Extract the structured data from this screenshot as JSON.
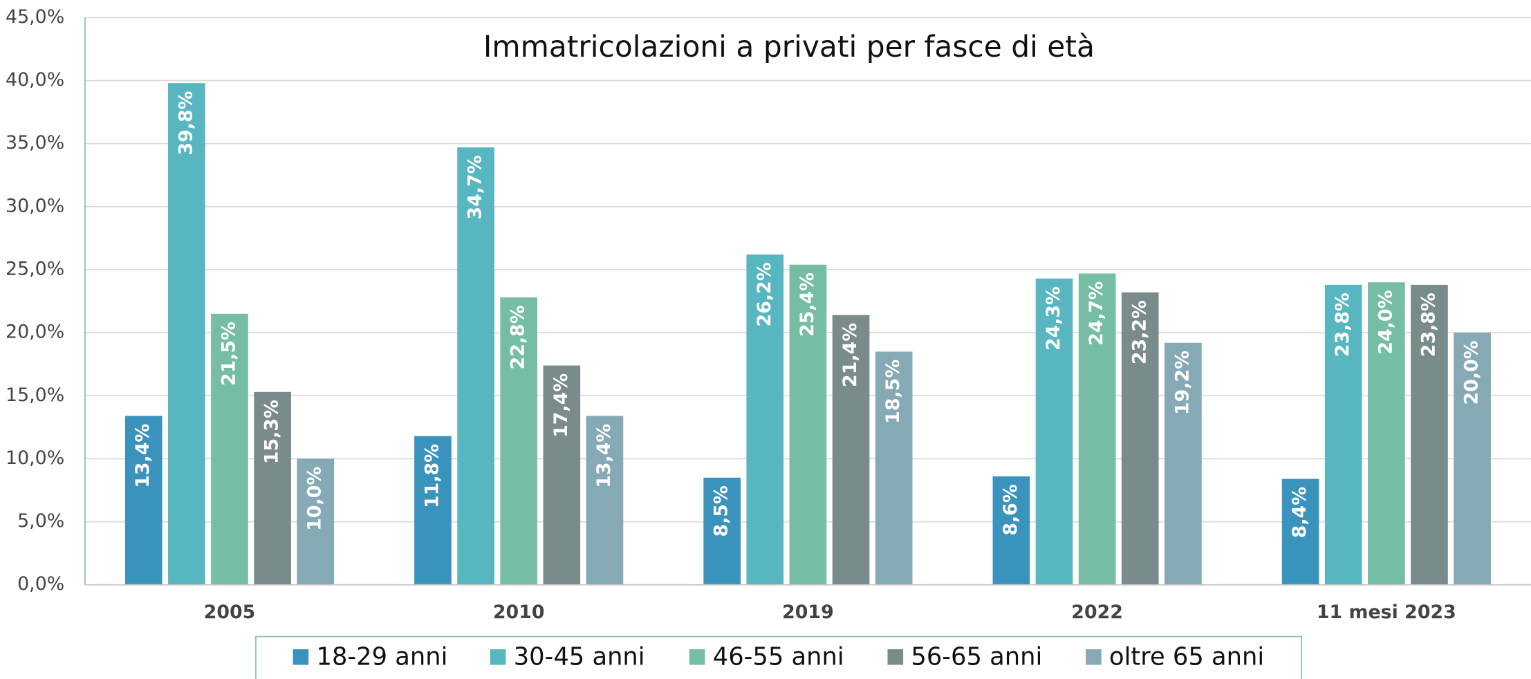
{
  "chart_data": {
    "type": "bar",
    "title": "Immatricolazioni a privati per fasce di età",
    "categories": [
      "2005",
      "2010",
      "2019",
      "2022",
      "11 mesi 2023"
    ],
    "series": [
      {
        "name": "18-29 anni",
        "color": "#3a93bd",
        "values": [
          13.4,
          11.8,
          8.5,
          8.6,
          8.4
        ],
        "value_labels": [
          "13,4%",
          "11,8%",
          "8,5%",
          "8,6%",
          "8,4%"
        ]
      },
      {
        "name": "30-45 anni",
        "color": "#58b6c0",
        "values": [
          39.8,
          34.7,
          26.2,
          24.3,
          23.8
        ],
        "value_labels": [
          "39,8%",
          "34,7%",
          "26,2%",
          "24,3%",
          "23,8%"
        ]
      },
      {
        "name": "46-55 anni",
        "color": "#75bda5",
        "values": [
          21.5,
          22.8,
          25.4,
          24.7,
          24.0
        ],
        "value_labels": [
          "21,5%",
          "22,8%",
          "25,4%",
          "24,7%",
          "24,0%"
        ]
      },
      {
        "name": "56-65 anni",
        "color": "#7a8b8c",
        "values": [
          15.3,
          17.4,
          21.4,
          23.2,
          23.8
        ],
        "value_labels": [
          "15,3%",
          "17,4%",
          "21,4%",
          "23,2%",
          "23,8%"
        ]
      },
      {
        "name": "oltre 65 anni",
        "color": "#85a9b5",
        "values": [
          10.0,
          13.4,
          18.5,
          19.2,
          20.0
        ],
        "value_labels": [
          "10,0%",
          "13,4%",
          "18,5%",
          "19,2%",
          "20,0%"
        ]
      }
    ],
    "ylim": [
      0,
      45
    ],
    "yticks": [
      {
        "value": 0,
        "label": "0,0%"
      },
      {
        "value": 5,
        "label": "5,0%"
      },
      {
        "value": 10,
        "label": "10,0%"
      },
      {
        "value": 15,
        "label": "15,0%"
      },
      {
        "value": 20,
        "label": "20,0%"
      },
      {
        "value": 25,
        "label": "25,0%"
      },
      {
        "value": 30,
        "label": "30,0%"
      },
      {
        "value": 35,
        "label": "35,0%"
      },
      {
        "value": 40,
        "label": "40,0%"
      },
      {
        "value": 45,
        "label": "45,0%"
      }
    ],
    "grid": true,
    "legend": "bottom"
  }
}
